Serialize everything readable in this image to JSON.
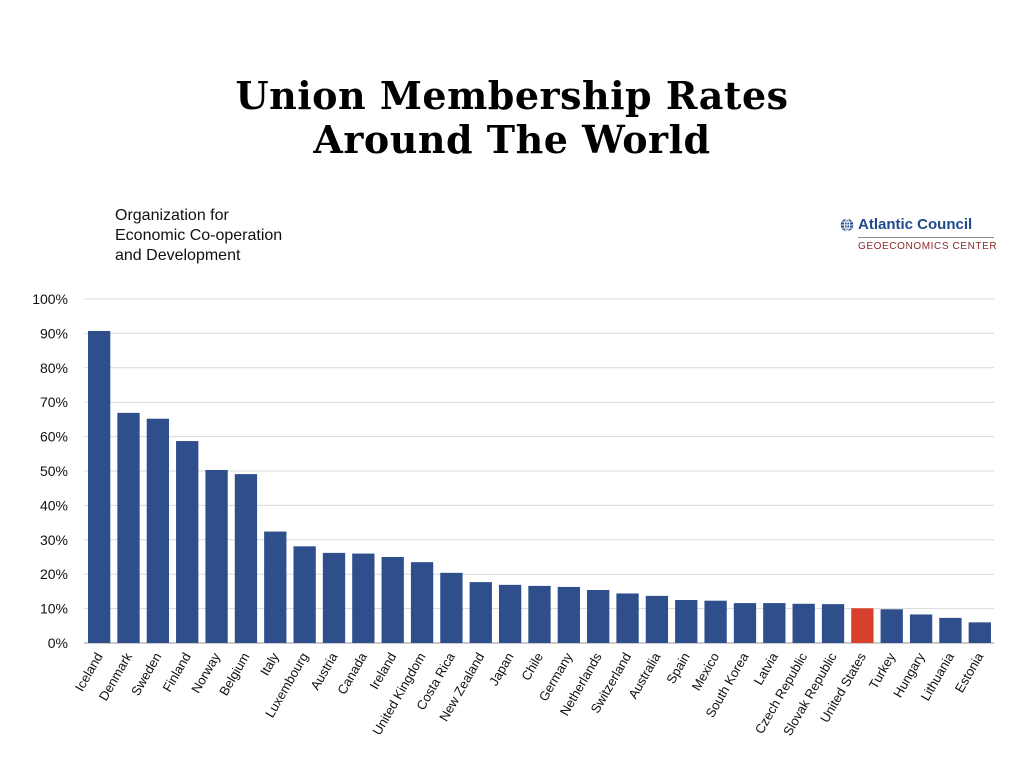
{
  "slide": {
    "title_line1": "Union Membership Rates",
    "title_line2": "Around The World"
  },
  "source": {
    "org_line1": "Organization for",
    "org_line2": "Economic Co-operation",
    "org_line3": "and Development",
    "brand_name": "Atlantic Council",
    "brand_sub": "GEOECONOMICS CENTER",
    "brand_icon": "globe-icon"
  },
  "colors": {
    "bar": "#2e4f8c",
    "highlight": "#d6402c",
    "grid": "#d9d9d9"
  },
  "chart_data": {
    "type": "bar",
    "categories": [
      "Iceland",
      "Denmark",
      "Sweden",
      "Finland",
      "Norway",
      "Belgium",
      "Italy",
      "Luxembourg",
      "Austria",
      "Canada",
      "Ireland",
      "United Kingdom",
      "Costa Rica",
      "New Zealand",
      "Japan",
      "Chile",
      "Germany",
      "Netherlands",
      "Switzerland",
      "Australia",
      "Spain",
      "Mexico",
      "South Korea",
      "Latvia",
      "Czech Republic",
      "Slovak Republic",
      "United States",
      "Turkey",
      "Hungary",
      "Lithuania",
      "Estonia"
    ],
    "values": [
      90.7,
      66.9,
      65.2,
      58.7,
      50.3,
      49.1,
      32.4,
      28.1,
      26.2,
      26.0,
      25.0,
      23.5,
      20.4,
      17.7,
      16.9,
      16.6,
      16.3,
      15.4,
      14.4,
      13.7,
      12.5,
      12.3,
      11.6,
      11.6,
      11.4,
      11.3,
      10.1,
      9.8,
      8.3,
      7.3,
      6.0
    ],
    "highlight_category": "United States",
    "yticks": [
      "0%",
      "10%",
      "20%",
      "30%",
      "40%",
      "50%",
      "60%",
      "70%",
      "80%",
      "90%",
      "100%"
    ],
    "ylim": [
      0,
      100
    ],
    "grid": true,
    "xlabel": "",
    "ylabel": ""
  }
}
